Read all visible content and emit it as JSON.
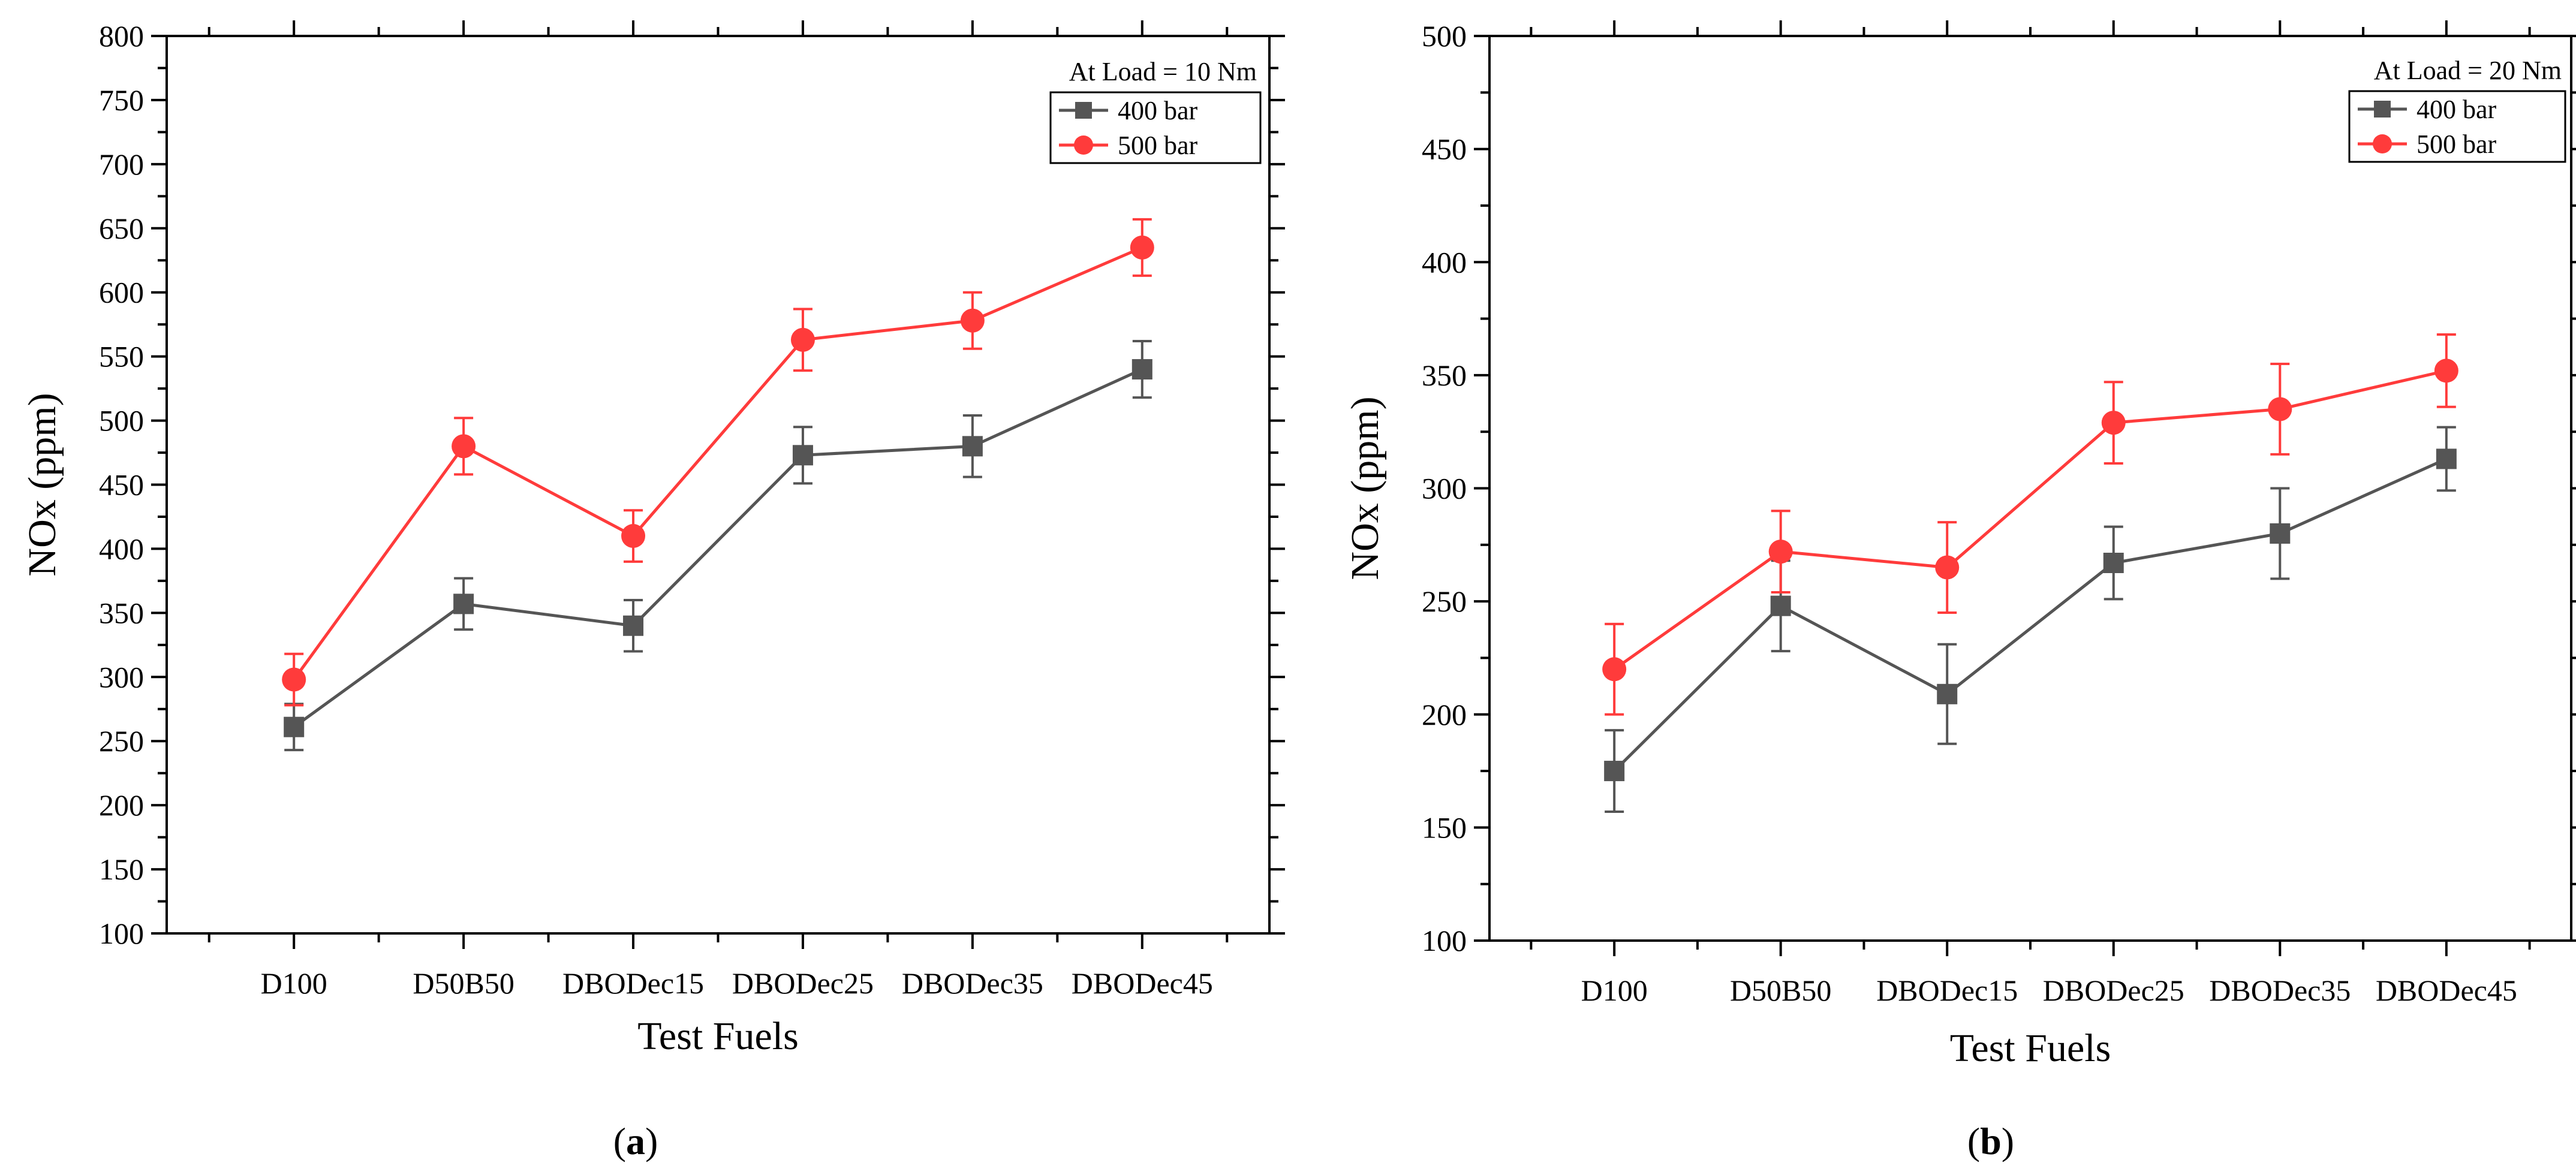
{
  "chart_data": [
    {
      "id": "a",
      "type": "line",
      "panel_label": "a",
      "xlabel": "Test Fuels",
      "ylabel": "NOx (ppm)",
      "ylim": [
        100,
        800
      ],
      "ytick_step": 50,
      "categories": [
        "D100",
        "D50B50",
        "DBODec15",
        "DBODec25",
        "DBODec35",
        "DBODec45"
      ],
      "legend_title": "At Load = 10 Nm",
      "legend_position": "top-right",
      "series": [
        {
          "name": "400 bar",
          "color": "#555555",
          "marker": "square",
          "values": [
            261,
            357,
            340,
            473,
            480,
            540
          ],
          "errors": [
            18,
            20,
            20,
            22,
            24,
            22
          ]
        },
        {
          "name": "500 bar",
          "color": "#ff3b3b",
          "marker": "circle",
          "values": [
            298,
            480,
            410,
            563,
            578,
            635
          ],
          "errors": [
            20,
            22,
            20,
            24,
            22,
            22
          ]
        }
      ]
    },
    {
      "id": "b",
      "type": "line",
      "panel_label": "b",
      "xlabel": "Test Fuels",
      "ylabel": "NOx (ppm)",
      "ylim": [
        100,
        500
      ],
      "ytick_step": 50,
      "categories": [
        "D100",
        "D50B50",
        "DBODec15",
        "DBODec25",
        "DBODec35",
        "DBODec45"
      ],
      "legend_title": "At Load = 20 Nm",
      "legend_position": "top-right",
      "series": [
        {
          "name": "400 bar",
          "color": "#555555",
          "marker": "square",
          "values": [
            175,
            248,
            209,
            267,
            280,
            313
          ],
          "errors": [
            18,
            20,
            22,
            16,
            20,
            14
          ]
        },
        {
          "name": "500 bar",
          "color": "#ff3b3b",
          "marker": "circle",
          "values": [
            220,
            272,
            265,
            329,
            335,
            352
          ],
          "errors": [
            20,
            18,
            20,
            18,
            20,
            16
          ]
        }
      ]
    }
  ]
}
